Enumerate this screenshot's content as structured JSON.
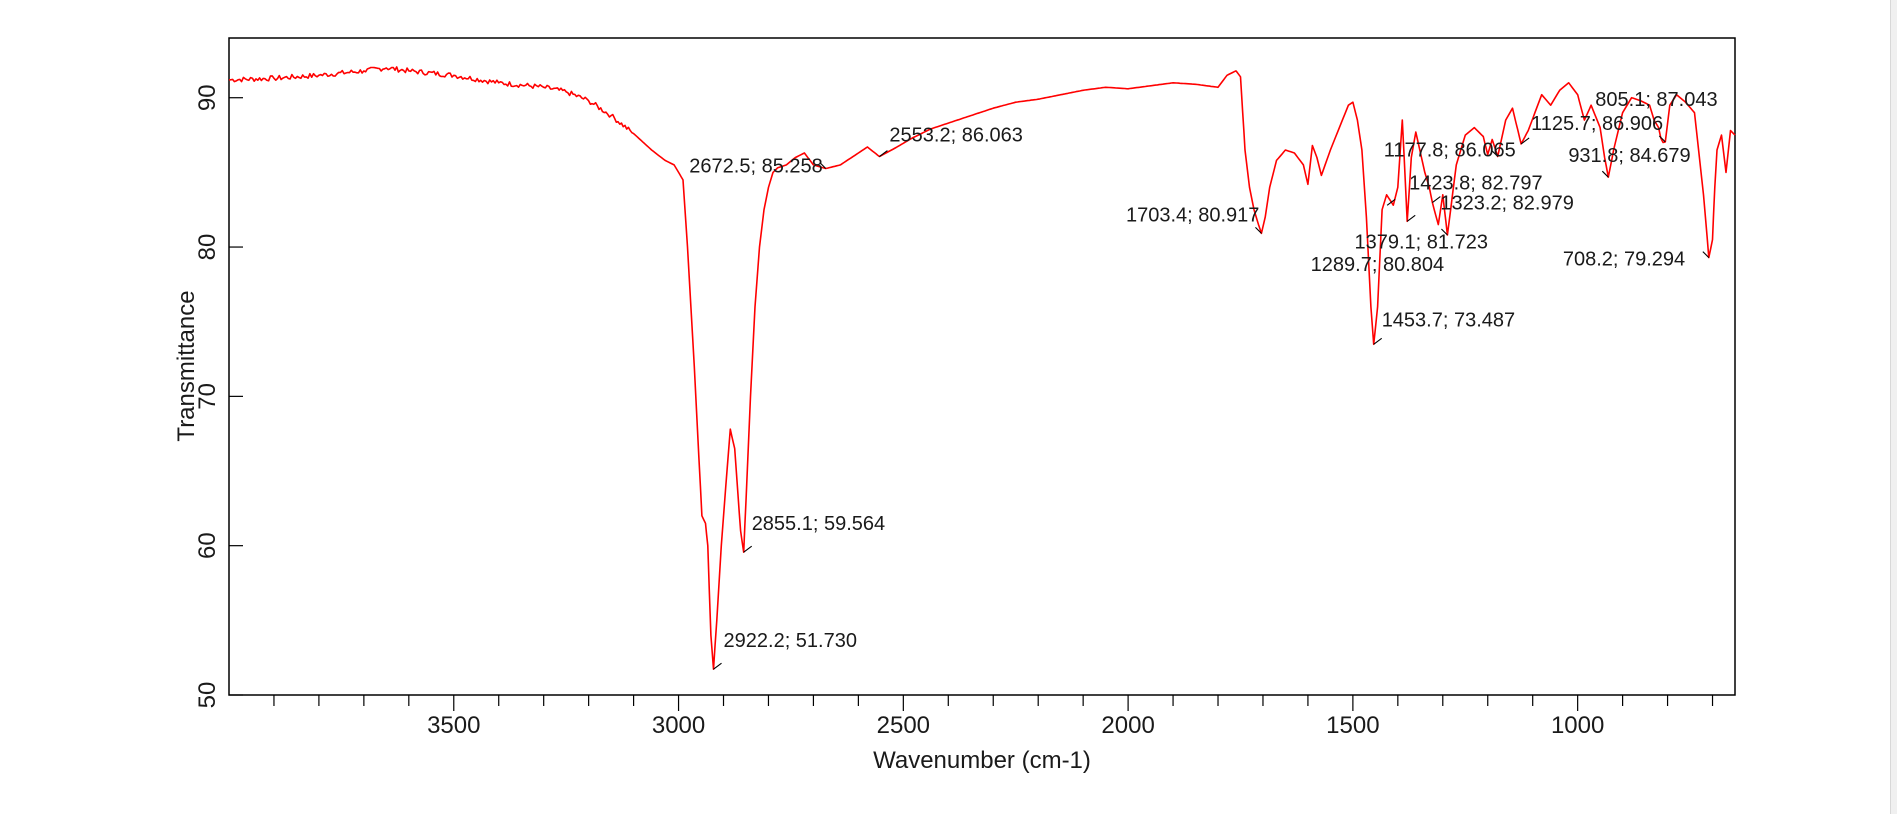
{
  "chart_data": {
    "type": "line",
    "title": "",
    "xlabel": "Wavenumber (cm-1)",
    "ylabel": "Transmittance",
    "xlim": [
      4000,
      650
    ],
    "ylim": [
      50,
      94
    ],
    "x_ticks": [
      3500,
      3000,
      2500,
      2000,
      1500,
      1000
    ],
    "y_ticks": [
      50,
      60,
      70,
      80,
      90
    ],
    "grid": false,
    "line_color": "#ff0000",
    "series": [
      {
        "x": [
          4000,
          3900,
          3800,
          3700,
          3650,
          3600,
          3500,
          3400,
          3300,
          3250,
          3200,
          3150,
          3100,
          3060,
          3030,
          3010,
          2990,
          2980,
          2965,
          2955,
          2948,
          2940,
          2935,
          2928,
          2922.2,
          2915,
          2905,
          2895,
          2885,
          2875,
          2868,
          2862,
          2855.1,
          2850,
          2840,
          2830,
          2820,
          2810,
          2800,
          2790,
          2780,
          2760,
          2740,
          2720,
          2700,
          2672.5,
          2640,
          2600,
          2580,
          2553.2,
          2520,
          2480,
          2440,
          2400,
          2350,
          2300,
          2250,
          2200,
          2150,
          2100,
          2050,
          2000,
          1950,
          1900,
          1850,
          1800,
          1780,
          1760,
          1750,
          1745,
          1740,
          1730,
          1720,
          1710,
          1703.4,
          1695,
          1685,
          1670,
          1650,
          1630,
          1610,
          1600,
          1590,
          1580,
          1570,
          1550,
          1530,
          1510,
          1500,
          1490,
          1480,
          1470,
          1460,
          1453.7,
          1445,
          1435,
          1425,
          1410,
          1400,
          1390,
          1379.1,
          1370,
          1360,
          1340,
          1330,
          1323.2,
          1310,
          1300,
          1289.7,
          1270,
          1250,
          1230,
          1210,
          1200,
          1190,
          1177.8,
          1160,
          1145,
          1125.7,
          1110,
          1095,
          1080,
          1060,
          1040,
          1020,
          1000,
          985,
          970,
          950,
          940,
          931.8,
          920,
          900,
          880,
          860,
          840,
          830,
          820,
          815,
          810,
          805.1,
          795,
          780,
          760,
          740,
          720,
          708.2,
          700,
          695,
          690,
          680,
          670,
          660,
          650
        ],
        "y": [
          91.2,
          91.3,
          91.5,
          91.8,
          92.0,
          91.8,
          91.5,
          91.0,
          90.7,
          90.4,
          89.8,
          88.8,
          87.6,
          86.5,
          85.8,
          85.5,
          84.5,
          80.0,
          72.0,
          66.0,
          62.0,
          61.5,
          60.0,
          54.0,
          51.73,
          55.0,
          60.0,
          64.0,
          67.8,
          66.5,
          63.5,
          61.0,
          59.564,
          63.0,
          70.0,
          76.0,
          80.0,
          82.5,
          84.0,
          85.0,
          85.3,
          85.5,
          86.0,
          86.3,
          85.5,
          85.258,
          85.5,
          86.3,
          86.7,
          86.063,
          86.6,
          87.3,
          87.9,
          88.3,
          88.8,
          89.3,
          89.7,
          89.9,
          90.2,
          90.5,
          90.7,
          90.6,
          90.8,
          91.0,
          90.9,
          90.7,
          91.5,
          91.8,
          91.4,
          89.0,
          86.5,
          84.0,
          82.5,
          81.5,
          80.917,
          82.0,
          84.0,
          85.8,
          86.5,
          86.3,
          85.5,
          84.2,
          86.8,
          86.0,
          84.8,
          86.5,
          88.0,
          89.5,
          89.7,
          88.5,
          86.5,
          82.0,
          76.0,
          73.487,
          76.0,
          82.5,
          83.5,
          82.8,
          84.0,
          88.5,
          81.723,
          86.0,
          87.7,
          85.0,
          84.0,
          82.979,
          81.5,
          83.5,
          80.804,
          85.5,
          87.5,
          88.0,
          87.4,
          86.2,
          87.2,
          86.065,
          88.5,
          89.3,
          86.906,
          87.8,
          89.0,
          90.2,
          89.5,
          90.5,
          91.0,
          90.2,
          88.5,
          89.5,
          88.0,
          86.0,
          84.679,
          86.5,
          89.0,
          90.0,
          89.8,
          89.5,
          88.5,
          88.0,
          87.3,
          87.0,
          87.043,
          89.5,
          90.2,
          89.7,
          89.0,
          83.5,
          79.294,
          80.5,
          84.0,
          86.5,
          87.5,
          85.0,
          87.8,
          87.5
        ]
      }
    ],
    "annotations": [
      {
        "text": "2922.2; 51.730",
        "x": 2922.2,
        "y": 51.73
      },
      {
        "text": "2855.1; 59.564",
        "x": 2855.1,
        "y": 59.564
      },
      {
        "text": "2672.5; 85.258",
        "x": 2672.5,
        "y": 85.258
      },
      {
        "text": "2553.2; 86.063",
        "x": 2553.2,
        "y": 86.063
      },
      {
        "text": "1703.4; 80.917",
        "x": 1703.4,
        "y": 80.917
      },
      {
        "text": "1453.7; 73.487",
        "x": 1453.7,
        "y": 73.487
      },
      {
        "text": "1379.1; 81.723",
        "x": 1379.1,
        "y": 81.723
      },
      {
        "text": "1289.7; 80.804",
        "x": 1289.7,
        "y": 80.804
      },
      {
        "text": "1323.2; 82.979",
        "x": 1323.2,
        "y": 82.979
      },
      {
        "text": "1423.8; 82.797",
        "x": 1423.8,
        "y": 82.797
      },
      {
        "text": "1177.8; 86.065",
        "x": 1177.8,
        "y": 86.065
      },
      {
        "text": "1125.7; 86.906",
        "x": 1125.7,
        "y": 86.906
      },
      {
        "text": "931.8; 84.679",
        "x": 931.8,
        "y": 84.679
      },
      {
        "text": "805.1; 87.043",
        "x": 805.1,
        "y": 87.043
      },
      {
        "text": "708.2; 79.294",
        "x": 708.2,
        "y": 79.294
      }
    ]
  }
}
